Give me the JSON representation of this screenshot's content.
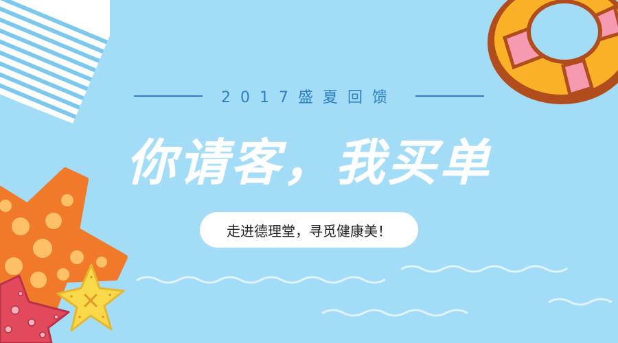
{
  "colors": {
    "background": "#a3dcf7",
    "accent_blue": "#2f7fc6",
    "headline": "#ffffff",
    "starfish_orange": "#f07a2a",
    "starfish_spots": "#ffc067",
    "starfish_red": "#e24a5c",
    "starfish_yellow": "#f9d94a",
    "ring_orange": "#f9b227",
    "ring_border": "#b14c1c",
    "ring_pink": "#f59ab0"
  },
  "banner": {
    "subtitle": "2017盛夏回馈",
    "headline": "你请客，我买单",
    "tagline": "走进德理堂，寻觅健康美！"
  },
  "decor": {
    "striped_towel": "striped-towel-icon",
    "life_ring": "life-ring-icon",
    "starfish_orange": "orange-starfish-icon",
    "starfish_red": "red-starfish-icon",
    "starfish_yellow": "yellow-starfish-icon",
    "waves": "wave-icon"
  }
}
